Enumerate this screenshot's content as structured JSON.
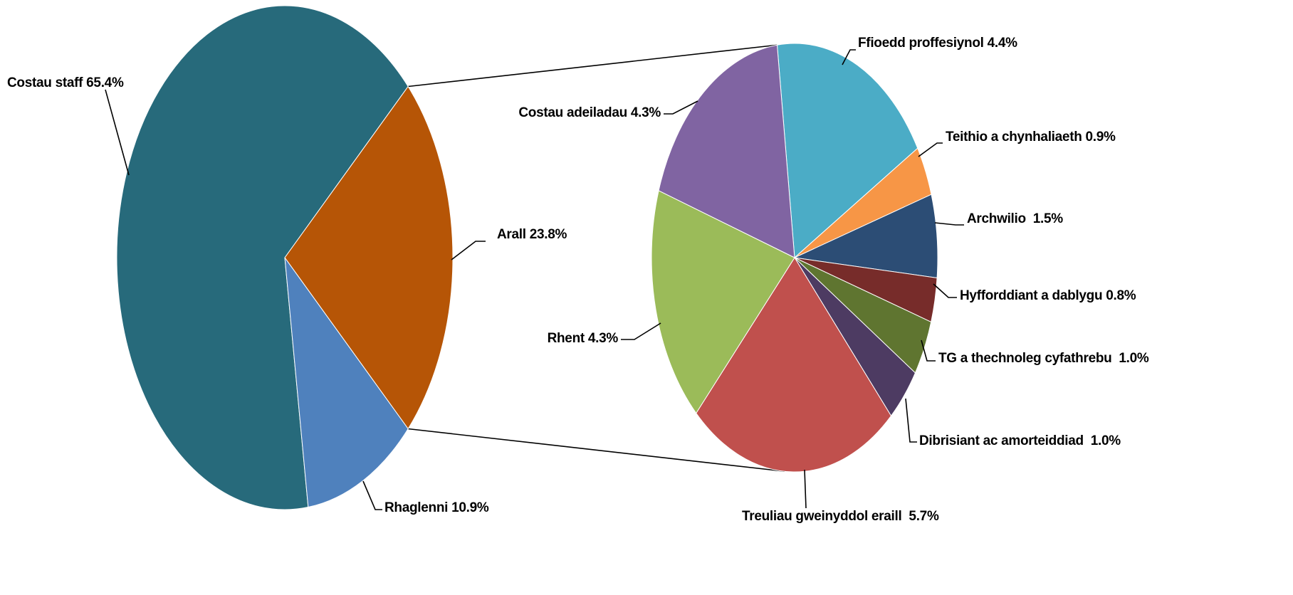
{
  "chart_data": {
    "type": "pie",
    "subtype": "pie-of-pie",
    "title": "",
    "main_pie": {
      "slices": [
        {
          "label": "Costau staff",
          "value": 65.4,
          "display": "Costau staff 65.4%",
          "color": "#276A7B"
        },
        {
          "label": "Arall",
          "value": 23.8,
          "display": "Arall 23.8%",
          "color": "#B65506"
        },
        {
          "label": "Rhaglenni",
          "value": 10.9,
          "display": "Rhaglenni 10.9%",
          "color": "#4F81BD"
        }
      ]
    },
    "exploded_slice": "Arall",
    "secondary_pie": {
      "slices": [
        {
          "label": "Ffioedd proffesiynol",
          "value": 4.4,
          "display": "Ffioedd proffesiynol 4.4%",
          "color": "#4BACC6"
        },
        {
          "label": "Teithio a chynhaliaeth",
          "value": 0.9,
          "display": "Teithio a chynhaliaeth 0.9%",
          "color": "#F79646"
        },
        {
          "label": "Archwilio",
          "value": 1.5,
          "display": "Archwilio  1.5%",
          "color": "#2C4D75"
        },
        {
          "label": "Hyfforddiant a dablygu",
          "value": 0.8,
          "display": "Hyfforddiant a dablygu 0.8%",
          "color": "#772C2A"
        },
        {
          "label": "TG a thechnoleg cyfathrebu",
          "value": 1.0,
          "display": "TG a thechnoleg cyfathrebu  1.0%",
          "color": "#5F7530"
        },
        {
          "label": "Dibrisiant ac amorteiddiad",
          "value": 1.0,
          "display": "Dibrisiant ac amorteiddiad  1.0%",
          "color": "#4D3B62"
        },
        {
          "label": "Treuliau gweinyddol eraill",
          "value": 5.7,
          "display": "Treuliau gweinyddol eraill  5.7%",
          "color": "#C0504D"
        },
        {
          "label": "Rhent",
          "value": 4.3,
          "display": "Rhent 4.3%",
          "color": "#9BBB59"
        },
        {
          "label": "Costau adeiladau",
          "value": 4.3,
          "display": "Costau adeiladau 4.3%",
          "color": "#8064A2"
        }
      ]
    },
    "legend": "none"
  }
}
